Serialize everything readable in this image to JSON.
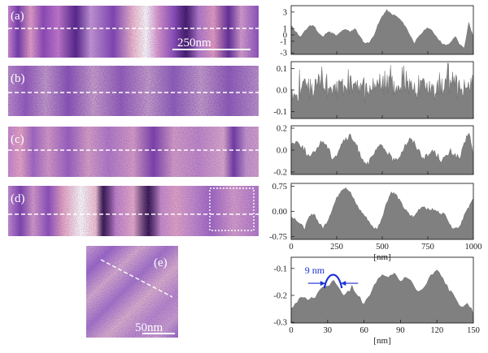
{
  "panels": [
    {
      "label": "(a)",
      "scale_bar": "250nm"
    },
    {
      "label": "(b)"
    },
    {
      "label": "(c)"
    },
    {
      "label": "(d)"
    },
    {
      "label": "(e)",
      "scale_bar": "50nm"
    }
  ],
  "colors": {
    "profile_fill": "#808080",
    "annotation": "#1a2fd6",
    "map_dark": "#1c0a3c",
    "map_mid": "#9a5cc8",
    "map_light": "#ffffff"
  },
  "chart_data": [
    {
      "type": "area",
      "panel": "a",
      "xlim": [
        0,
        1000
      ],
      "ylim": [
        -3.5,
        5
      ],
      "yticks": [
        "3",
        "1",
        "0",
        "-1",
        "-3"
      ],
      "x": [
        0,
        25,
        50,
        75,
        100,
        125,
        150,
        175,
        200,
        225,
        250,
        275,
        300,
        325,
        350,
        375,
        400,
        425,
        450,
        475,
        500,
        525,
        550,
        575,
        600,
        625,
        650,
        675,
        700,
        725,
        750,
        775,
        800,
        825,
        850,
        875,
        900,
        925,
        950,
        975,
        1000
      ],
      "y": [
        1.5,
        0.5,
        -0.5,
        0.5,
        1.5,
        1.5,
        0.2,
        -0.5,
        0.5,
        0.2,
        -0.3,
        0.5,
        0.8,
        0.5,
        1.0,
        -0.3,
        -1.5,
        -1.5,
        -0.5,
        1.5,
        3.2,
        4.2,
        3.5,
        3.2,
        2.5,
        1.5,
        0,
        -1.5,
        -0.5,
        0.5,
        1.2,
        0.5,
        -0.5,
        -1.5,
        -2.0,
        -1.5,
        -0.3,
        -1.8,
        -2.5,
        2.0,
        -0.5
      ]
    },
    {
      "type": "area",
      "panel": "b",
      "xlim": [
        0,
        1000
      ],
      "ylim": [
        -0.15,
        0.12
      ],
      "yticks": [
        "0.1",
        "0.0",
        "-0.1"
      ],
      "x": [
        0,
        50,
        100,
        150,
        200,
        250,
        300,
        350,
        400,
        450,
        500,
        550,
        600,
        650,
        700,
        750,
        800,
        850,
        900,
        950,
        1000
      ],
      "y": [
        -0.04,
        -0.02,
        -0.03,
        0.0,
        -0.04,
        -0.03,
        -0.01,
        -0.03,
        -0.05,
        -0.02,
        -0.01,
        -0.04,
        -0.02,
        -0.03,
        -0.02,
        -0.04,
        -0.03,
        -0.01,
        -0.03,
        -0.02,
        -0.03
      ]
    },
    {
      "type": "area",
      "panel": "c",
      "xlim": [
        0,
        1000
      ],
      "ylim": [
        -0.2,
        0.2
      ],
      "yticks": [
        "0.2",
        "0.0",
        "-0.2"
      ],
      "x": [
        0,
        25,
        50,
        75,
        100,
        125,
        150,
        175,
        200,
        225,
        250,
        275,
        300,
        325,
        350,
        375,
        400,
        425,
        450,
        475,
        500,
        525,
        550,
        575,
        600,
        625,
        650,
        675,
        700,
        725,
        750,
        775,
        800,
        825,
        850,
        875,
        900,
        925,
        950,
        975,
        1000
      ],
      "y": [
        0.05,
        0.07,
        0.05,
        0.0,
        -0.06,
        -0.03,
        0.04,
        0.08,
        0.02,
        -0.06,
        -0.04,
        0.05,
        0.09,
        0.11,
        0.06,
        -0.02,
        -0.09,
        -0.11,
        -0.05,
        0.02,
        0.03,
        -0.01,
        -0.07,
        -0.09,
        -0.03,
        0.04,
        0.09,
        0.06,
        0.0,
        -0.06,
        -0.05,
        0.0,
        -0.04,
        -0.08,
        -0.06,
        -0.01,
        -0.04,
        -0.07,
        0.04,
        0.16,
        -0.05
      ]
    },
    {
      "type": "area",
      "panel": "d",
      "xlim": [
        0,
        1000
      ],
      "ylim": [
        -0.75,
        0.75
      ],
      "yticks": [
        "0.75",
        "0.00",
        "-0.75"
      ],
      "xticks": [
        0,
        250,
        500,
        750,
        1000
      ],
      "xlabel": "[nm]",
      "x": [
        0,
        25,
        50,
        75,
        100,
        125,
        150,
        175,
        200,
        225,
        250,
        275,
        300,
        325,
        350,
        375,
        400,
        425,
        450,
        475,
        500,
        525,
        550,
        575,
        600,
        625,
        650,
        675,
        700,
        725,
        750,
        775,
        800,
        825,
        850,
        875,
        900,
        925,
        950,
        975,
        1000
      ],
      "y": [
        -0.15,
        -0.2,
        -0.35,
        -0.45,
        -0.15,
        -0.05,
        -0.3,
        -0.45,
        -0.25,
        0.05,
        0.35,
        0.58,
        0.65,
        0.5,
        0.25,
        0.05,
        -0.1,
        -0.25,
        -0.45,
        -0.45,
        -0.15,
        0.25,
        0.52,
        0.45,
        0.25,
        0.05,
        -0.1,
        -0.15,
        0.05,
        0.15,
        0.05,
        0.05,
        0.0,
        -0.05,
        -0.1,
        -0.4,
        -0.45,
        -0.4,
        -0.1,
        0.1,
        0.35
      ]
    },
    {
      "type": "area",
      "panel": "e",
      "xlim": [
        0,
        150
      ],
      "ylim": [
        -0.3,
        -0.06
      ],
      "yticks": [
        "-0.1",
        "-0.2",
        "-0.3"
      ],
      "xticks": [
        0,
        30,
        60,
        90,
        120,
        150
      ],
      "xlabel": "[nm]",
      "annotation": {
        "text": "9 nm",
        "x_from": 30,
        "x_to": 39
      },
      "x": [
        0,
        5,
        10,
        15,
        20,
        25,
        30,
        35,
        40,
        45,
        50,
        55,
        60,
        65,
        70,
        75,
        80,
        85,
        90,
        95,
        100,
        105,
        110,
        115,
        120,
        125,
        130,
        135,
        140,
        145,
        150
      ],
      "y": [
        -0.25,
        -0.22,
        -0.2,
        -0.22,
        -0.2,
        -0.18,
        -0.16,
        -0.15,
        -0.18,
        -0.2,
        -0.17,
        -0.2,
        -0.23,
        -0.2,
        -0.15,
        -0.13,
        -0.14,
        -0.12,
        -0.15,
        -0.13,
        -0.16,
        -0.19,
        -0.17,
        -0.13,
        -0.11,
        -0.14,
        -0.18,
        -0.21,
        -0.24,
        -0.22,
        -0.27
      ]
    }
  ]
}
